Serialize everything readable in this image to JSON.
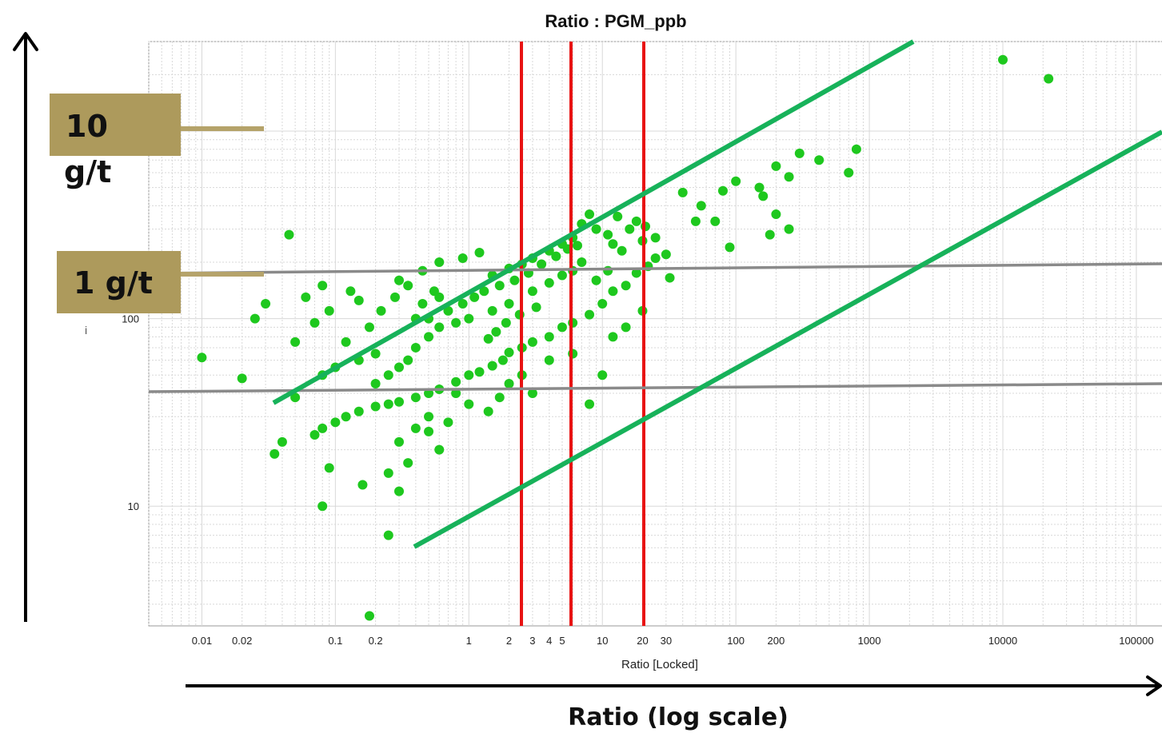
{
  "chart_data": {
    "type": "scatter",
    "title": "Ratio : PGM_ppb",
    "xlabel": "Ratio [Locked]",
    "x_description": "Ratio (log scale)",
    "x_scale": "log",
    "y_scale": "log",
    "xlim": [
      0.004,
      160000
    ],
    "ylim": [
      2.3,
      3000
    ],
    "x_ticks": [
      {
        "value": 0.01,
        "label": "0.01"
      },
      {
        "value": 0.02,
        "label": "0.02"
      },
      {
        "value": 0.1,
        "label": "0.1"
      },
      {
        "value": 0.2,
        "label": "0.2"
      },
      {
        "value": 1,
        "label": "1"
      },
      {
        "value": 2,
        "label": "2"
      },
      {
        "value": 3,
        "label": "3"
      },
      {
        "value": 4,
        "label": "4"
      },
      {
        "value": 5,
        "label": "5"
      },
      {
        "value": 10,
        "label": "10"
      },
      {
        "value": 20,
        "label": "20"
      },
      {
        "value": 30,
        "label": "30"
      },
      {
        "value": 100,
        "label": "100"
      },
      {
        "value": 200,
        "label": "200"
      },
      {
        "value": 1000,
        "label": "1000"
      },
      {
        "value": 10000,
        "label": "10000"
      },
      {
        "value": 100000,
        "label": "100000"
      }
    ],
    "y_ticks": [
      {
        "value": 10,
        "label": "10"
      },
      {
        "value": 100,
        "label": "100"
      }
    ],
    "grid": true,
    "marker_color": "#1ec81e",
    "points": [
      [
        10000,
        2400
      ],
      [
        22000,
        1900
      ],
      [
        0.01,
        62
      ],
      [
        0.02,
        48
      ],
      [
        0.045,
        280
      ],
      [
        0.05,
        75
      ],
      [
        0.05,
        38
      ],
      [
        0.04,
        22
      ],
      [
        0.035,
        19
      ],
      [
        0.09,
        16
      ],
      [
        0.08,
        10
      ],
      [
        0.18,
        2.6
      ],
      [
        0.25,
        7
      ],
      [
        0.3,
        12
      ],
      [
        0.16,
        13
      ],
      [
        100,
        540
      ],
      [
        150,
        500
      ],
      [
        200,
        650
      ],
      [
        80,
        480
      ],
      [
        250,
        570
      ],
      [
        300,
        760
      ],
      [
        420,
        700
      ],
      [
        700,
        600
      ],
      [
        800,
        800
      ],
      [
        160,
        450
      ],
      [
        180,
        280
      ],
      [
        250,
        300
      ],
      [
        50,
        330
      ],
      [
        30,
        220
      ],
      [
        25,
        270
      ],
      [
        40,
        470
      ],
      [
        55,
        400
      ],
      [
        70,
        330
      ],
      [
        200,
        360
      ],
      [
        90,
        240
      ],
      [
        20,
        260
      ],
      [
        15,
        150
      ],
      [
        18,
        175
      ],
      [
        22,
        190
      ],
      [
        25,
        210
      ],
      [
        32,
        165
      ],
      [
        12,
        140
      ],
      [
        10,
        120
      ],
      [
        8,
        105
      ],
      [
        6,
        95
      ],
      [
        9,
        160
      ],
      [
        11,
        180
      ],
      [
        5,
        90
      ],
      [
        4,
        80
      ],
      [
        3,
        75
      ],
      [
        2.5,
        70
      ],
      [
        2,
        66
      ],
      [
        1.8,
        60
      ],
      [
        1.5,
        56
      ],
      [
        1.2,
        52
      ],
      [
        1,
        50
      ],
      [
        0.8,
        46
      ],
      [
        0.6,
        42
      ],
      [
        0.5,
        40
      ],
      [
        0.4,
        38
      ],
      [
        0.3,
        36
      ],
      [
        0.25,
        35
      ],
      [
        0.2,
        34
      ],
      [
        0.15,
        32
      ],
      [
        0.12,
        30
      ],
      [
        0.1,
        28
      ],
      [
        0.08,
        26
      ],
      [
        0.07,
        24
      ],
      [
        1,
        100
      ],
      [
        1.5,
        110
      ],
      [
        2,
        120
      ],
      [
        0.8,
        95
      ],
      [
        0.6,
        90
      ],
      [
        3,
        140
      ],
      [
        4,
        155
      ],
      [
        5,
        170
      ],
      [
        6,
        180
      ],
      [
        7,
        200
      ],
      [
        0.5,
        80
      ],
      [
        0.4,
        70
      ],
      [
        0.35,
        60
      ],
      [
        0.3,
        55
      ],
      [
        0.25,
        50
      ],
      [
        0.2,
        45
      ],
      [
        0.9,
        120
      ],
      [
        1.1,
        130
      ],
      [
        1.3,
        140
      ],
      [
        1.7,
        150
      ],
      [
        2.2,
        160
      ],
      [
        0.7,
        110
      ],
      [
        0.6,
        130
      ],
      [
        0.5,
        100
      ],
      [
        0.45,
        120
      ],
      [
        0.55,
        140
      ],
      [
        2.8,
        175
      ],
      [
        3.5,
        195
      ],
      [
        4.5,
        215
      ],
      [
        5.5,
        235
      ],
      [
        6.5,
        245
      ],
      [
        1.6,
        85
      ],
      [
        1.4,
        78
      ],
      [
        1.9,
        95
      ],
      [
        2.4,
        105
      ],
      [
        3.2,
        115
      ],
      [
        0.3,
        160
      ],
      [
        0.45,
        180
      ],
      [
        0.6,
        200
      ],
      [
        0.9,
        210
      ],
      [
        1.2,
        225
      ],
      [
        0.8,
        40
      ],
      [
        1,
        35
      ],
      [
        1.4,
        32
      ],
      [
        0.5,
        30
      ],
      [
        0.4,
        26
      ],
      [
        0.3,
        22
      ],
      [
        0.6,
        20
      ],
      [
        0.35,
        17
      ],
      [
        0.25,
        15
      ],
      [
        0.5,
        25
      ],
      [
        0.7,
        28
      ],
      [
        2,
        45
      ],
      [
        2.5,
        50
      ],
      [
        3,
        40
      ],
      [
        1.7,
        38
      ],
      [
        4,
        60
      ],
      [
        6,
        65
      ],
      [
        8,
        35
      ],
      [
        10,
        50
      ],
      [
        15,
        90
      ],
      [
        20,
        110
      ],
      [
        12,
        80
      ],
      [
        0.15,
        60
      ],
      [
        0.1,
        55
      ],
      [
        0.08,
        50
      ],
      [
        0.2,
        65
      ],
      [
        0.12,
        75
      ],
      [
        0.18,
        90
      ],
      [
        0.22,
        110
      ],
      [
        0.28,
        130
      ],
      [
        0.35,
        150
      ],
      [
        0.4,
        100
      ],
      [
        7,
        320
      ],
      [
        9,
        300
      ],
      [
        11,
        280
      ],
      [
        13,
        350
      ],
      [
        8,
        360
      ],
      [
        6,
        270
      ],
      [
        5,
        250
      ],
      [
        4,
        230
      ],
      [
        3,
        210
      ],
      [
        2.5,
        195
      ],
      [
        2,
        185
      ],
      [
        1.5,
        170
      ],
      [
        12,
        250
      ],
      [
        14,
        230
      ],
      [
        16,
        300
      ],
      [
        18,
        330
      ],
      [
        21,
        310
      ],
      [
        0.03,
        120
      ],
      [
        0.025,
        100
      ],
      [
        0.06,
        130
      ],
      [
        0.08,
        150
      ],
      [
        0.09,
        110
      ],
      [
        0.07,
        95
      ],
      [
        0.15,
        125
      ],
      [
        0.13,
        140
      ]
    ]
  }
}
